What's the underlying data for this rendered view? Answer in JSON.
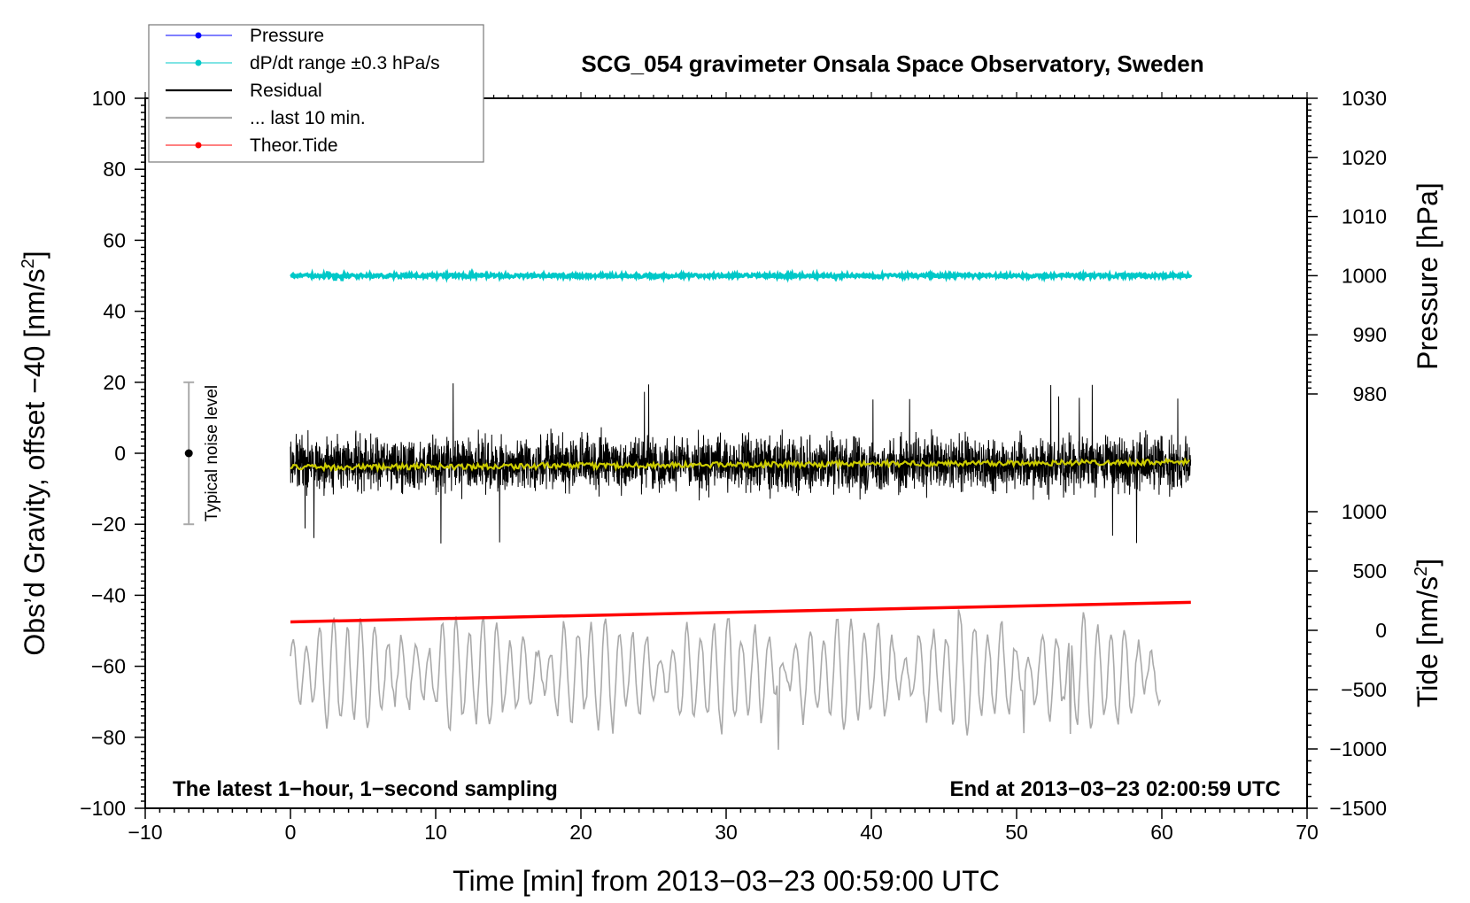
{
  "chart_data": {
    "type": "line",
    "title": "SCG_054 gravimeter Onsala Space Observatory, Sweden",
    "xlabel": "Time [min] from 2013−03−23 00:59:00 UTC",
    "ylabel_left": "Obs’d Gravity, offset −40 [nm/s",
    "ylabel_left_sup": "2",
    "ylabel_left_tail": "]",
    "ylabel_right_pressure": "Pressure [hPa]",
    "ylabel_right_tide": "Tide [nm/s",
    "ylabel_right_tide_sup": "2",
    "ylabel_right_tide_tail": "]",
    "xlim": [
      -10,
      70
    ],
    "ylim_left": [
      -100,
      100
    ],
    "pressure_lim": [
      980,
      1030
    ],
    "tide_lim": [
      -1500,
      1000
    ],
    "x_ticks": [
      "−10",
      "0",
      "10",
      "20",
      "30",
      "40",
      "50",
      "60",
      "70"
    ],
    "y_ticks_left": [
      "100",
      "80",
      "60",
      "40",
      "20",
      "0",
      "−20",
      "−40",
      "−60",
      "−80",
      "−100"
    ],
    "y_ticks_pressure": [
      "1030",
      "1020",
      "1010",
      "1000",
      "990",
      "980"
    ],
    "y_ticks_tide": [
      "1000",
      "500",
      "0",
      "−500",
      "−1000",
      "−1500"
    ],
    "series": [
      {
        "name": "Pressure",
        "color": "#0000ff",
        "note": "plotted at ~1000 hPa, hidden under dP/dt trace"
      },
      {
        "name": "dP/dt range ±0.3 hPa/s",
        "color": "#00c8c8",
        "x_range": [
          0,
          62
        ],
        "y_level": 50
      },
      {
        "name": "Residual",
        "color": "#000000",
        "x_range": [
          0,
          62
        ],
        "mean": -3,
        "range": [
          -27,
          20
        ]
      },
      {
        "name": "... last 10 min.",
        "color": "#aaaaaa",
        "x_range": [
          0,
          60
        ],
        "mean": -62,
        "range": [
          -85,
          -42
        ]
      },
      {
        "name": "Theor.Tide",
        "color": "#ff0000",
        "x_range": [
          0,
          62
        ],
        "y_start": -47.5,
        "y_end": -42
      }
    ],
    "smoothed_residual_color": "#cccc00",
    "noise_bar": {
      "label": "Typical noise level",
      "x": -7,
      "center": 0,
      "range": [
        -20,
        20
      ]
    },
    "annotation_left": "The latest 1−hour, 1−second sampling",
    "annotation_right": "End at 2013−03−23 02:00:59 UTC",
    "legend_position": "top-left"
  }
}
